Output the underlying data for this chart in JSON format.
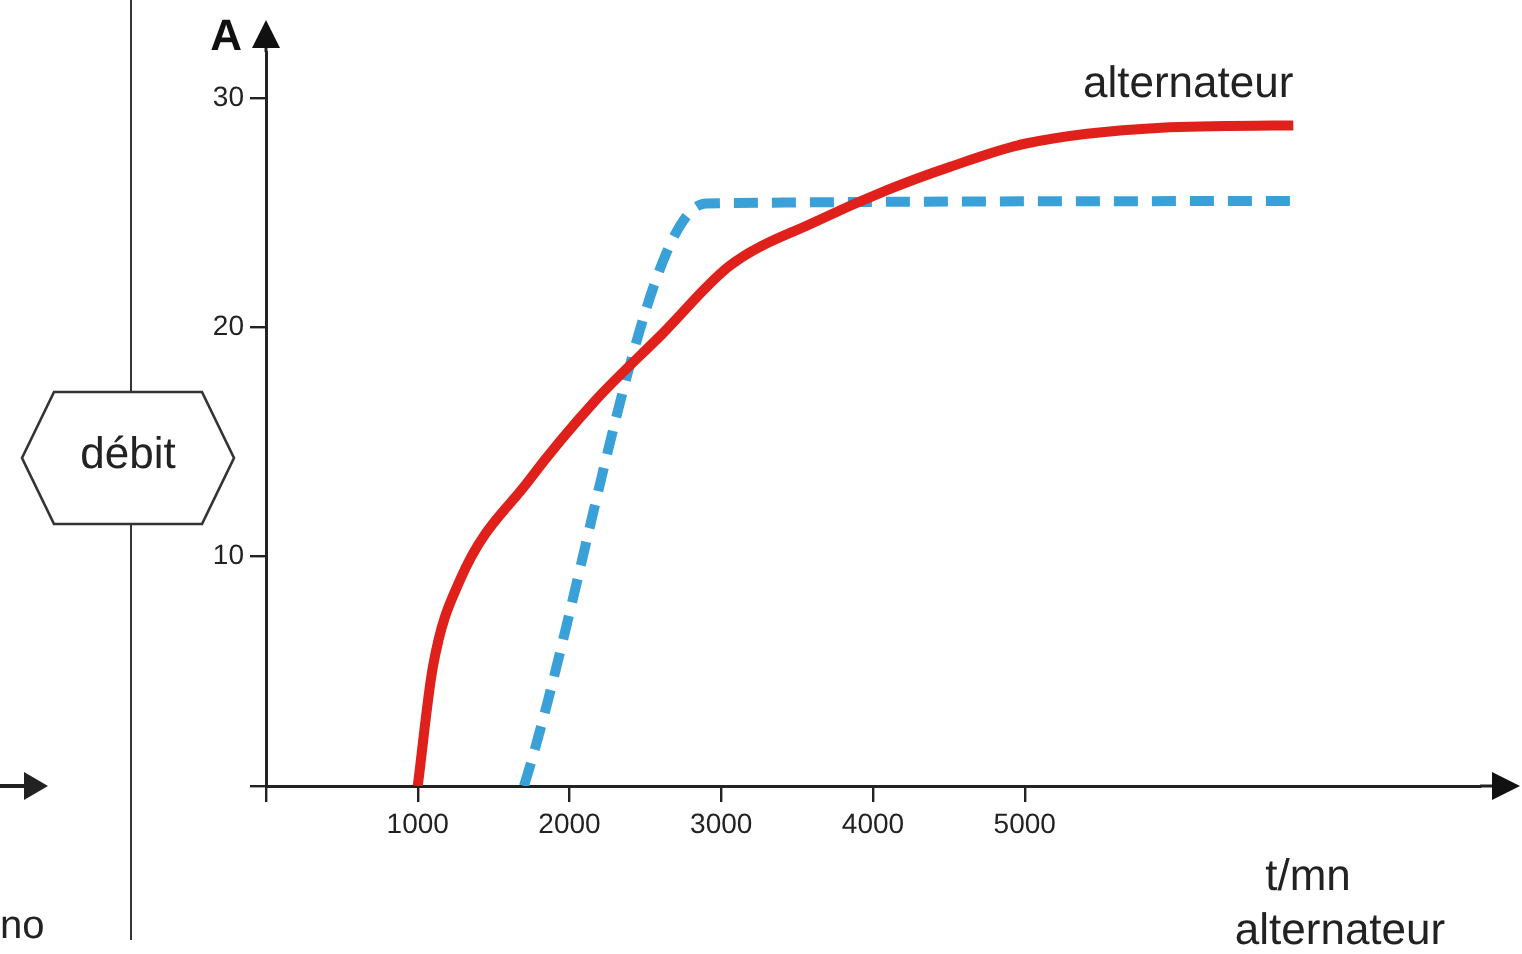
{
  "chart_data": {
    "type": "line",
    "ylabel": "A",
    "xlabel": "t/mn\nalternateur",
    "xlim": [
      0,
      8000
    ],
    "xticks": [
      {
        "value": 0,
        "label": null
      },
      1000,
      2000,
      3000,
      4000,
      5000
    ],
    "ylim": [
      0,
      32
    ],
    "yticks": [
      {
        "value": 0,
        "label": null
      },
      10,
      20,
      30
    ],
    "grid": false,
    "legend": false,
    "marker": "none",
    "annotations": [
      "débit",
      "no"
    ],
    "series": [
      {
        "name": "alternateur",
        "color": "#e0201a",
        "line_style": "solid",
        "x": [
          1000,
          1100,
          1280,
          1730,
          2170,
          2610,
          3060,
          3620,
          4100,
          4510,
          5000,
          5900,
          6770
        ],
        "values": [
          0,
          5.2,
          9,
          13.3,
          16.8,
          19.7,
          22.7,
          24.6,
          26,
          27,
          28,
          28.7,
          28.8
        ]
      },
      {
        "color": "#3aa0d8",
        "line_style": "dashed",
        "x": [
          1700,
          2900,
          6770
        ],
        "values": [
          0,
          25.4,
          25.5
        ]
      }
    ]
  }
}
